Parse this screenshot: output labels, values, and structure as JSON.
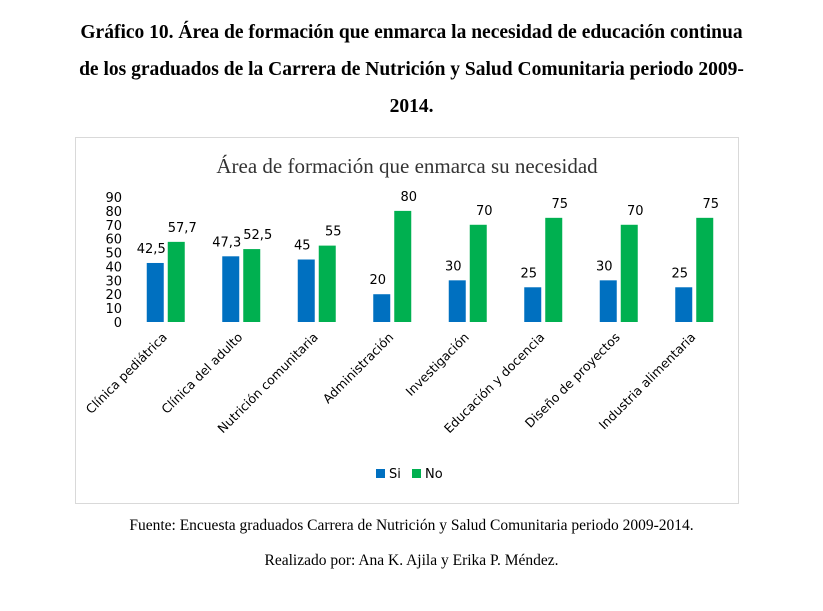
{
  "document": {
    "title_line1": "Gráfico 10. Área de formación que enmarca la necesidad de educación continua",
    "title_line2": "de los graduados de la Carrera de Nutrición y Salud Comunitaria periodo 2009-",
    "title_line3": "2014.",
    "source": "Fuente: Encuesta  graduados Carrera de Nutrición y Salud Comunitaria  periodo 2009-2014.",
    "author": "Realizado por: Ana K. Ajila y Erika P. Méndez."
  },
  "chart_data": {
    "type": "bar",
    "title": "Área de formación que enmarca su necesidad",
    "categories": [
      "Clínica pediátrica",
      "Clínica del adulto",
      "Nutrición comunitaria",
      "Administración",
      "Investigación",
      "Educación y docencia",
      "Diseño de proyectos",
      "Industria alimentaria"
    ],
    "series": [
      {
        "name": "Si",
        "color": "#0070C0",
        "values": [
          42.5,
          47.3,
          45,
          20,
          30,
          25,
          30,
          25
        ],
        "labels": [
          "42,5",
          "47,3",
          "45",
          "20",
          "30",
          "25",
          "30",
          "25"
        ]
      },
      {
        "name": "No",
        "color": "#00B050",
        "values": [
          57.7,
          52.5,
          55,
          80,
          70,
          75,
          70,
          75
        ],
        "labels": [
          "57,7",
          "52,5",
          "55",
          "80",
          "70",
          "75",
          "70",
          "75"
        ]
      }
    ],
    "yticks": [
      0,
      10,
      20,
      30,
      40,
      50,
      60,
      70,
      80,
      90
    ],
    "ylim": [
      0,
      90
    ],
    "legend_position": "bottom",
    "grid": false,
    "xlabel": "",
    "ylabel": ""
  }
}
